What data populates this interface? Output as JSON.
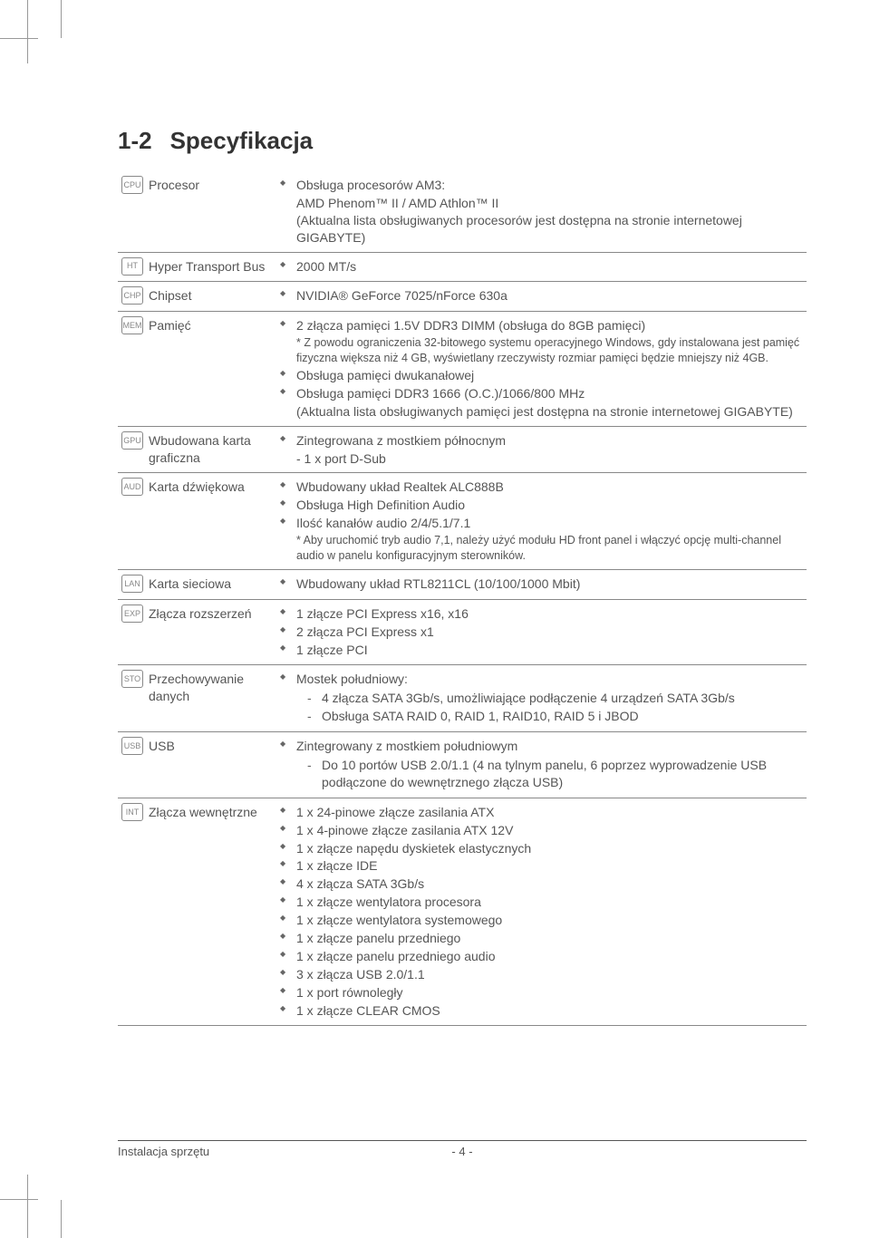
{
  "section": {
    "number": "1-2",
    "title": "Specyfikacja"
  },
  "rows": [
    {
      "icon": "CPU",
      "label": "Procesor",
      "items": [
        {
          "type": "bullet",
          "text": "Obsługa procesorów AM3:"
        },
        {
          "type": "aux",
          "text": "AMD Phenom™ II / AMD Athlon™ II"
        },
        {
          "type": "aux",
          "text": "(Aktualna lista obsługiwanych procesorów jest dostępna na stronie internetowej GIGABYTE)"
        }
      ]
    },
    {
      "icon": "HT",
      "label": "Hyper Transport Bus",
      "items": [
        {
          "type": "bullet",
          "text": "2000 MT/s"
        }
      ]
    },
    {
      "icon": "CHP",
      "label": "Chipset",
      "items": [
        {
          "type": "bullet",
          "text": "NVIDIA® GeForce 7025/nForce 630a"
        }
      ]
    },
    {
      "icon": "MEM",
      "label": "Pamięć",
      "items": [
        {
          "type": "bullet",
          "text": "2 złącza pamięci 1.5V DDR3 DIMM (obsługa do 8GB pamięci)"
        },
        {
          "type": "note",
          "text": "* Z powodu ograniczenia 32-bitowego systemu operacyjnego Windows, gdy instalowana jest pamięć fizyczna większa niż 4 GB, wyświetlany rzeczywisty rozmiar pamięci będzie mniejszy niż 4GB."
        },
        {
          "type": "bullet",
          "text": "Obsługa pamięci dwukanałowej"
        },
        {
          "type": "bullet",
          "text": "Obsługa pamięci DDR3 1666 (O.C.)/1066/800 MHz"
        },
        {
          "type": "aux",
          "text": "(Aktualna lista obsługiwanych pamięci jest dostępna na stronie internetowej GIGABYTE)"
        }
      ]
    },
    {
      "icon": "GPU",
      "label": "Wbudowana karta graficzna",
      "items": [
        {
          "type": "bullet",
          "text": "Zintegrowana z mostkiem północnym"
        },
        {
          "type": "aux",
          "text": "- 1 x port D-Sub"
        }
      ]
    },
    {
      "icon": "AUD",
      "label": "Karta dźwiękowa",
      "items": [
        {
          "type": "bullet",
          "text": "Wbudowany układ Realtek ALC888B"
        },
        {
          "type": "bullet",
          "text": "Obsługa High Definition Audio"
        },
        {
          "type": "bullet",
          "text": "Ilość kanałów audio 2/4/5.1/7.1"
        },
        {
          "type": "note",
          "text": "* Aby uruchomić tryb audio 7,1, należy użyć modułu HD front panel i włączyć opcję multi-channel audio w panelu konfiguracyjnym sterowników."
        }
      ]
    },
    {
      "icon": "LAN",
      "label": "Karta sieciowa",
      "items": [
        {
          "type": "bullet",
          "text": "Wbudowany układ RTL8211CL (10/100/1000 Mbit)"
        }
      ]
    },
    {
      "icon": "EXP",
      "label": "Złącza rozszerzeń",
      "items": [
        {
          "type": "bullet",
          "text": "1 złącze PCI Express x16, x16"
        },
        {
          "type": "bullet",
          "text": "2 złącza PCI Express x1"
        },
        {
          "type": "bullet",
          "text": "1 złącze PCI"
        }
      ]
    },
    {
      "icon": "STO",
      "label": "Przechowywanie danych",
      "items": [
        {
          "type": "bullet",
          "text": "Mostek południowy:",
          "sub": [
            "4 złącza SATA 3Gb/s, umożliwiające podłączenie 4 urządzeń SATA 3Gb/s",
            "Obsługa SATA RAID 0, RAID 1, RAID10, RAID 5 i JBOD"
          ]
        }
      ]
    },
    {
      "icon": "USB",
      "label": "USB",
      "items": [
        {
          "type": "bullet",
          "text": "Zintegrowany z mostkiem południowym",
          "sub": [
            "Do 10 portów USB 2.0/1.1 (4 na tylnym panelu, 6 poprzez wyprowadzenie USB podłączone do wewnętrznego złącza USB)"
          ]
        }
      ]
    },
    {
      "icon": "INT",
      "label": "Złącza wewnętrzne",
      "items": [
        {
          "type": "bullet",
          "text": "1 x 24-pinowe złącze zasilania ATX"
        },
        {
          "type": "bullet",
          "text": "1 x 4-pinowe złącze zasilania ATX 12V"
        },
        {
          "type": "bullet",
          "text": "1 x złącze napędu dyskietek elastycznych"
        },
        {
          "type": "bullet",
          "text": "1 x złącze IDE"
        },
        {
          "type": "bullet",
          "text": "4 x złącza SATA 3Gb/s"
        },
        {
          "type": "bullet",
          "text": "1 x złącze wentylatora procesora"
        },
        {
          "type": "bullet",
          "text": "1 x złącze wentylatora systemowego"
        },
        {
          "type": "bullet",
          "text": "1 x złącze panelu przedniego"
        },
        {
          "type": "bullet",
          "text": "1 x złącze panelu przedniego audio"
        },
        {
          "type": "bullet",
          "text": "3 x złącza USB 2.0/1.1"
        },
        {
          "type": "bullet",
          "text": "1 x port równoległy"
        },
        {
          "type": "bullet",
          "text": "1 x złącze CLEAR CMOS"
        }
      ]
    }
  ],
  "footer": {
    "left": "Instalacja sprzętu",
    "page": "- 4 -"
  }
}
